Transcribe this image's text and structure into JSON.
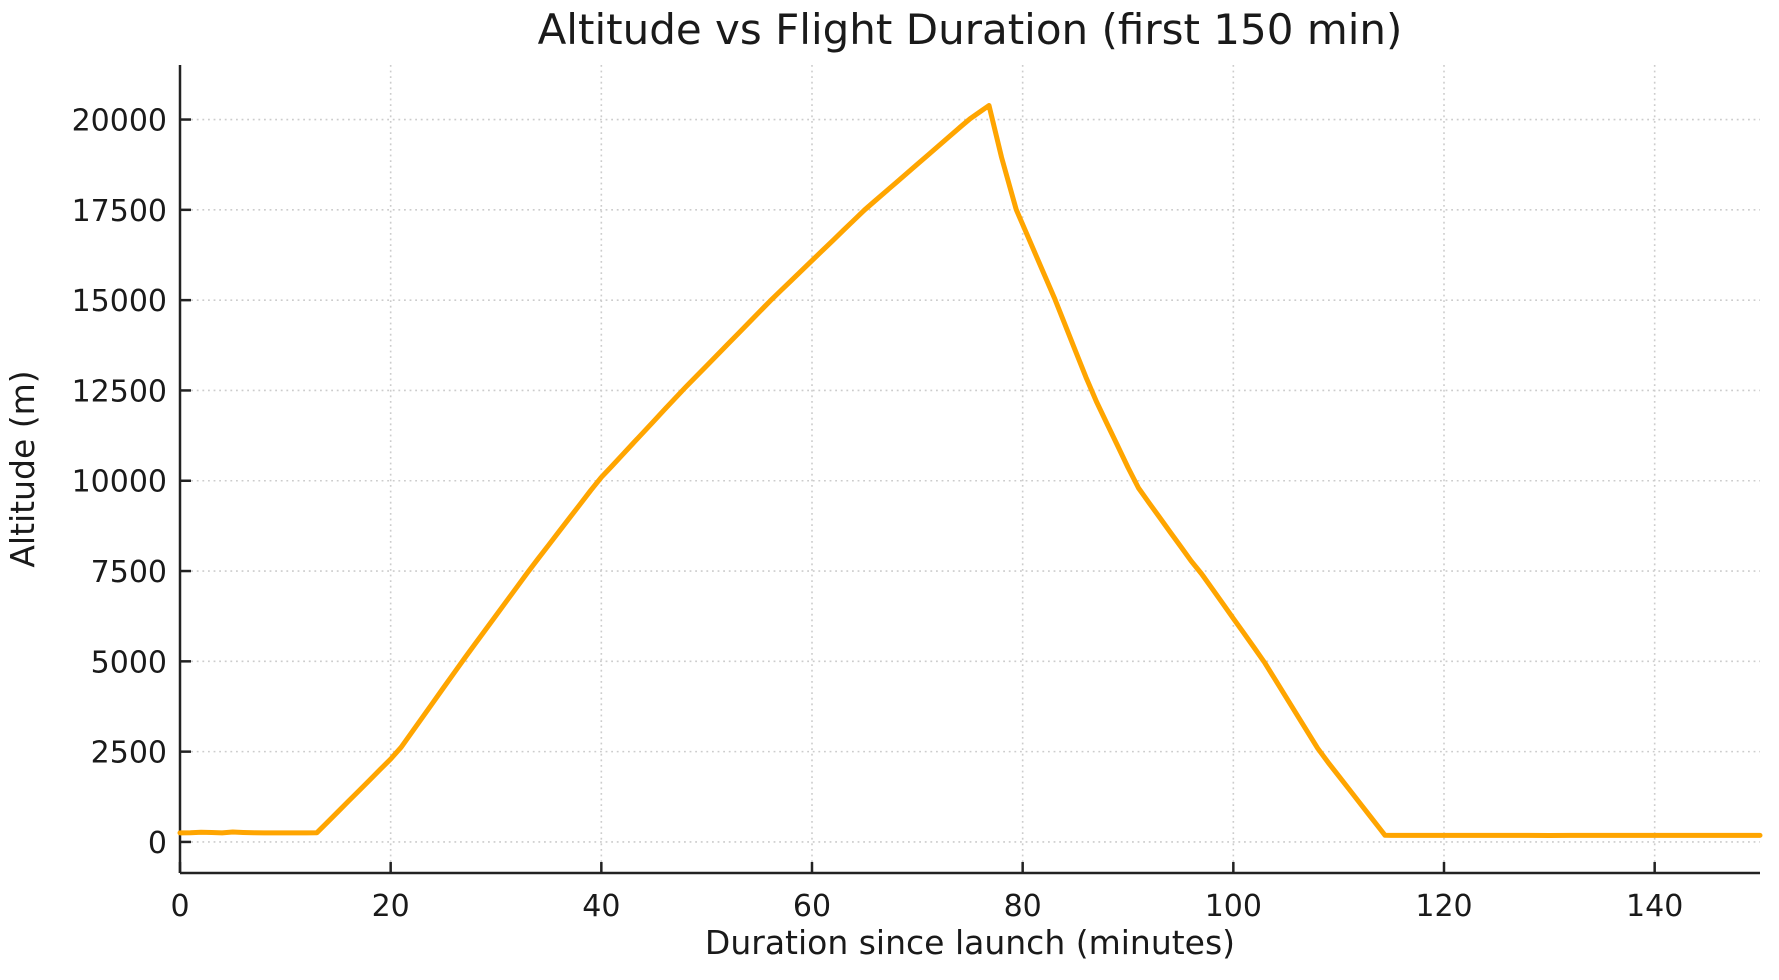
{
  "figure": {
    "title": "Altitude vs Flight Duration (first 150 min)",
    "xlabel": "Duration since launch (minutes)",
    "ylabel": "Altitude (m)"
  },
  "colors": {
    "line": "#FFA500",
    "grid": "#cccccc",
    "spine": "#222222",
    "text": "#1a1a1a",
    "background": "#ffffff"
  },
  "chart_data": {
    "type": "line",
    "title": "Altitude vs Flight Duration (first 150 min)",
    "xlabel": "Duration since launch (minutes)",
    "ylabel": "Altitude (m)",
    "xlim": [
      0,
      150
    ],
    "ylim": [
      -860,
      21510
    ],
    "x_ticks": [
      0,
      20,
      40,
      60,
      80,
      100,
      120,
      140
    ],
    "y_ticks": [
      0,
      2500,
      5000,
      7500,
      10000,
      12500,
      15000,
      17500,
      20000
    ],
    "grid": "dotted",
    "legend_position": "none",
    "line_color": "#FFA500",
    "annotations": {
      "launch_flat_altitude_m": 250,
      "ascent_start_min": 13,
      "peak": {
        "x": 76.8,
        "y": 20390
      },
      "landing_min": 114.4,
      "ground_flat_altitude_m": 180
    },
    "series": [
      {
        "name": "altitude",
        "x": [
          0,
          1,
          2,
          3,
          4,
          5,
          6,
          7,
          8,
          9,
          10,
          11,
          12,
          13,
          14,
          15,
          16,
          17,
          18,
          19,
          20,
          21,
          22,
          23,
          24,
          25,
          26,
          27,
          28,
          29,
          30,
          31,
          32,
          33,
          34,
          35,
          36,
          37,
          38,
          39,
          40,
          41,
          42,
          43,
          44,
          45,
          46,
          47,
          48,
          49,
          50,
          51,
          52,
          53,
          54,
          55,
          56,
          57,
          58,
          59,
          60,
          61,
          62,
          63,
          64,
          65,
          66,
          67,
          68,
          69,
          70,
          71,
          72,
          73,
          74,
          75,
          76,
          76.8,
          77,
          78,
          79,
          79.4,
          80,
          81,
          82,
          83,
          84,
          85,
          86,
          87,
          88,
          89,
          90,
          91,
          92,
          93,
          94,
          95,
          96,
          97,
          98,
          99,
          100,
          101,
          102,
          103,
          104,
          105,
          106,
          107,
          108,
          109,
          110,
          111,
          112,
          113,
          114,
          114.4,
          115,
          116,
          118,
          120,
          122,
          125,
          128,
          130,
          132,
          135,
          138,
          140,
          142,
          145,
          148,
          150
        ],
        "y": [
          250,
          252,
          270,
          262,
          250,
          274,
          261,
          252,
          250,
          251,
          249,
          250,
          251,
          255,
          547,
          838,
          1130,
          1421,
          1713,
          2005,
          2296,
          2623,
          3033,
          3443,
          3853,
          4262,
          4672,
          5079,
          5476,
          5873,
          6270,
          6666,
          7063,
          7460,
          7841,
          8220,
          8599,
          8977,
          9356,
          9735,
          10094,
          10406,
          10719,
          11031,
          11344,
          11656,
          11969,
          12281,
          12589,
          12887,
          13185,
          13482,
          13780,
          14077,
          14375,
          14673,
          14970,
          15253,
          15534,
          15815,
          16096,
          16376,
          16657,
          16938,
          17219,
          17500,
          17753,
          18005,
          18258,
          18510,
          18763,
          19015,
          19268,
          19520,
          19773,
          20021,
          20226,
          20390,
          20150,
          18950,
          17914,
          17500,
          17095,
          16419,
          15743,
          15068,
          14338,
          13603,
          12868,
          12195,
          11585,
          10975,
          10366,
          9800,
          9387,
          8984,
          8581,
          8178,
          7775,
          7418,
          7008,
          6598,
          6188,
          5778,
          5369,
          4953,
          4481,
          4010,
          3538,
          3066,
          2594,
          2201,
          1828,
          1454,
          1081,
          707,
          334,
          185,
          182,
          180,
          181,
          180,
          182,
          180,
          181,
          179,
          180,
          181,
          180,
          182,
          180,
          181,
          180,
          180
        ]
      }
    ]
  }
}
